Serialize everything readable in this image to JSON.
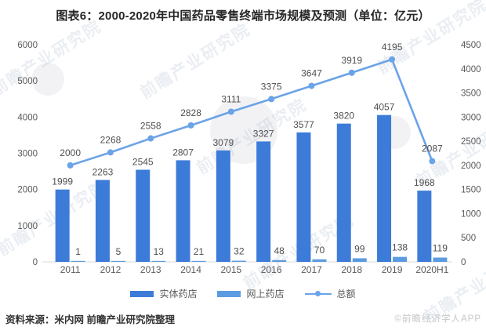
{
  "title": "图表6：2000-2020年中国药品零售终端市场规模及预测（单位：亿元）",
  "chart_data": {
    "type": "bar",
    "subtype": "grouped-bar-with-line-combo",
    "categories": [
      "2011",
      "2012",
      "2013",
      "2014",
      "2015",
      "2016",
      "2017",
      "2018",
      "2019",
      "2020H1"
    ],
    "series": [
      {
        "name": "实体药店",
        "type": "bar",
        "axis": "left",
        "color": "#3d7bd8",
        "values": [
          1999,
          2263,
          2545,
          2807,
          3079,
          3327,
          3577,
          3820,
          4057,
          1968
        ]
      },
      {
        "name": "网上药店",
        "type": "bar",
        "axis": "left",
        "color": "#5b9be0",
        "values": [
          1,
          5,
          13,
          21,
          32,
          48,
          70,
          99,
          138,
          119
        ]
      },
      {
        "name": "总额",
        "type": "line",
        "axis": "right",
        "color": "#6ba3e8",
        "values": [
          2000,
          2268,
          2558,
          2828,
          3111,
          3375,
          3647,
          3919,
          4195,
          2087
        ]
      }
    ],
    "left_axis": {
      "min": 0,
      "max": 6000,
      "step": 1000,
      "ticks": [
        0,
        1000,
        2000,
        3000,
        4000,
        5000,
        6000
      ]
    },
    "right_axis": {
      "min": 0,
      "max": 4500,
      "step": 500,
      "ticks": [
        0,
        500,
        1000,
        1500,
        2000,
        2500,
        3000,
        3500,
        4000,
        4500
      ]
    },
    "grid": false,
    "legend_position": "bottom",
    "data_labels": true
  },
  "footer": {
    "source": "资料来源：米内网 前瞻产业研究院整理",
    "brand": "©前瞻经济学人APP"
  },
  "watermark": {
    "brand_text": "前瞻产业研究院"
  },
  "colors": {
    "bar_physical": "#3d7bd8",
    "bar_online": "#5b9be0",
    "line_total": "#6ba3e8",
    "axis_line": "#d9d9d9",
    "label_text": "#4f4f4f"
  }
}
